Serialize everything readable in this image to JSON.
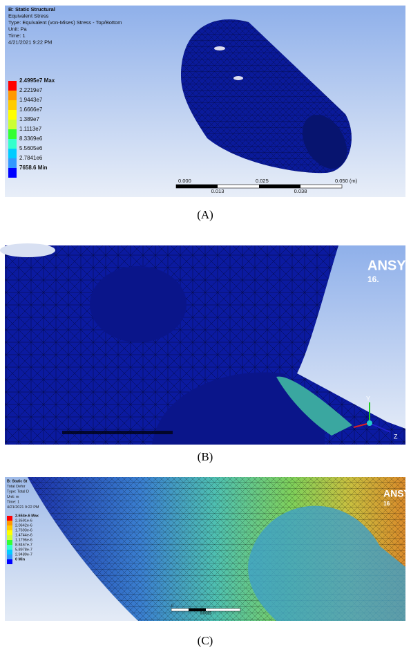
{
  "panels": [
    {
      "label": "(A)",
      "header": [
        "B: Static Structural",
        "Equivalent Stress",
        "Type: Equivalent (von-Mises) Stress - Top/Bottom",
        "Unit: Pa",
        "Time: 1",
        "4/21/2021 9:22 PM"
      ],
      "legend": [
        "2.4995e7 Max",
        "2.2219e7",
        "1.9443e7",
        "1.6666e7",
        "1.389e7",
        "1.1113e7",
        "8.3369e6",
        "5.5605e6",
        "2.7841e6",
        "7658.6 Min"
      ],
      "scale_top": [
        "0.000",
        "0.025",
        "0.050 (m)"
      ],
      "scale_bottom": [
        "0.013",
        "0.038"
      ]
    },
    {
      "label": "(B)",
      "logo": [
        "ANSYS",
        "16."
      ],
      "axes": [
        "Y",
        "Z"
      ]
    },
    {
      "label": "(C)",
      "header": [
        "B: Static St",
        "Total Defor",
        "Type: Total D",
        "Unit: m",
        "Time: 1",
        "4/21/2021 9:22 PM"
      ],
      "legend": [
        "2.654e-6 Max",
        "2.3591e-6",
        "2.0642e-6",
        "1.7693e-6",
        "1.4744e-6",
        "1.1796e-6",
        "8.8467e-7",
        "5.8978e-7",
        "2.9489e-7",
        "0 Min"
      ],
      "logo": [
        "ANSY",
        "16"
      ],
      "scale_top": [
        "0"
      ],
      "scale_bottom": [
        "0.0025"
      ]
    }
  ]
}
